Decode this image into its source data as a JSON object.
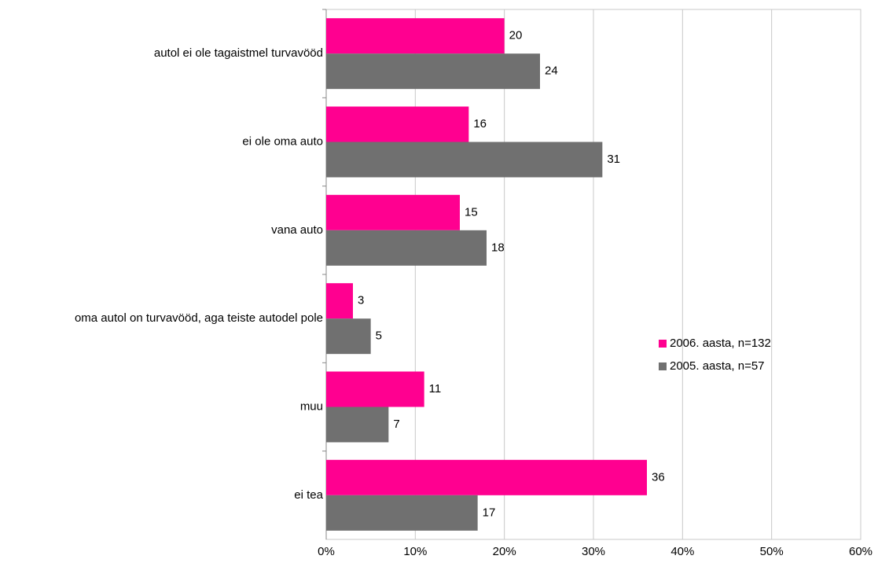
{
  "chart_data": {
    "type": "bar",
    "orientation": "horizontal",
    "categories": [
      "autol ei ole tagaistmel turvavööd",
      "ei ole oma auto",
      "vana auto",
      "oma autol on turvavööd, aga teiste autodel pole",
      "muu",
      "ei tea"
    ],
    "series": [
      {
        "name": "2006. aasta, n=132",
        "color": "#ff0090",
        "values": [
          20,
          16,
          15,
          3,
          11,
          36
        ]
      },
      {
        "name": "2005. aasta, n=57",
        "color": "#707070",
        "values": [
          24,
          31,
          18,
          5,
          7,
          17
        ]
      }
    ],
    "xlim": [
      0,
      60
    ],
    "xticks": [
      {
        "value": 0,
        "label": "0%"
      },
      {
        "value": 10,
        "label": "10%"
      },
      {
        "value": 20,
        "label": "20%"
      },
      {
        "value": 30,
        "label": "30%"
      },
      {
        "value": 40,
        "label": "40%"
      },
      {
        "value": 50,
        "label": "50%"
      },
      {
        "value": 60,
        "label": "60%"
      }
    ],
    "grid": true,
    "legend": "right"
  }
}
